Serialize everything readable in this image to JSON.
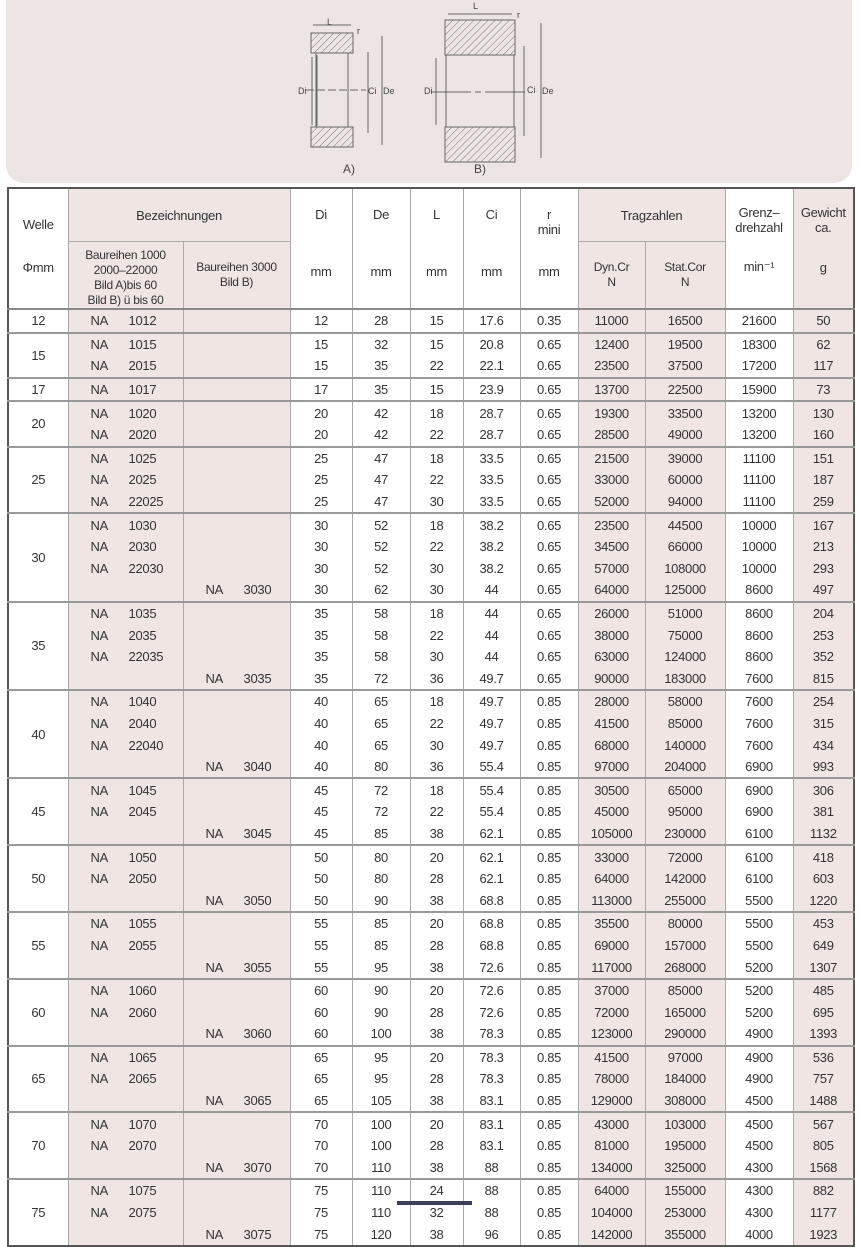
{
  "figure": {
    "labels": {
      "L": "L",
      "r": "r",
      "Di": "Di",
      "Ci": "Ci",
      "De": "De"
    },
    "caption_a": "A)",
    "caption_b": "B)"
  },
  "header": {
    "welle": "Welle",
    "welle_unit": "Φmm",
    "bezeichnungen": "Bezeichnungen",
    "series_a": [
      "Baureihen 1000",
      "2000–22000",
      "Bild A)bis 60",
      "Bild B) ü bis 60"
    ],
    "series_b": [
      "Baureihen 3000",
      "Bild B)"
    ],
    "di": "Di",
    "de": "De",
    "l": "L",
    "ci": "Ci",
    "r": "r",
    "r2": "mini",
    "mm": "mm",
    "tragzahlen": "Tragzahlen",
    "dyn": "Dyn.Cr",
    "stat": "Stat.Cor",
    "n_unit": "N",
    "grenz": "Grenz–",
    "grenz2": "drehzahl",
    "grenz_unit": "min⁻¹",
    "gewicht": "Gewicht",
    "gewicht2": "ca.",
    "gewicht_unit": "g"
  },
  "groups": [
    {
      "welle": "12",
      "rows": [
        [
          "NA 1012",
          "",
          "12",
          "28",
          "15",
          "17.6",
          "0.35",
          "11000",
          "16500",
          "21600",
          "50"
        ]
      ]
    },
    {
      "welle": "15",
      "rows": [
        [
          "NA 1015",
          "",
          "15",
          "32",
          "15",
          "20.8",
          "0.65",
          "12400",
          "19500",
          "18300",
          "62"
        ],
        [
          "NA 2015",
          "",
          "15",
          "35",
          "22",
          "22.1",
          "0.65",
          "23500",
          "37500",
          "17200",
          "117"
        ]
      ]
    },
    {
      "welle": "17",
      "rows": [
        [
          "NA 1017",
          "",
          "17",
          "35",
          "15",
          "23.9",
          "0.65",
          "13700",
          "22500",
          "15900",
          "73"
        ]
      ]
    },
    {
      "welle": "20",
      "rows": [
        [
          "NA 1020",
          "",
          "20",
          "42",
          "18",
          "28.7",
          "0.65",
          "19300",
          "33500",
          "13200",
          "130"
        ],
        [
          "NA 2020",
          "",
          "20",
          "42",
          "22",
          "28.7",
          "0.65",
          "28500",
          "49000",
          "13200",
          "160"
        ]
      ]
    },
    {
      "welle": "25",
      "rows": [
        [
          "NA 1025",
          "",
          "25",
          "47",
          "18",
          "33.5",
          "0.65",
          "21500",
          "39000",
          "11100",
          "151"
        ],
        [
          "NA 2025",
          "",
          "25",
          "47",
          "22",
          "33.5",
          "0.65",
          "33000",
          "60000",
          "11100",
          "187"
        ],
        [
          "NA 22025",
          "",
          "25",
          "47",
          "30",
          "33.5",
          "0.65",
          "52000",
          "94000",
          "11100",
          "259"
        ]
      ]
    },
    {
      "welle": "30",
      "rows": [
        [
          "NA 1030",
          "",
          "30",
          "52",
          "18",
          "38.2",
          "0.65",
          "23500",
          "44500",
          "10000",
          "167"
        ],
        [
          "NA 2030",
          "",
          "30",
          "52",
          "22",
          "38.2",
          "0.65",
          "34500",
          "66000",
          "10000",
          "213"
        ],
        [
          "NA 22030",
          "",
          "30",
          "52",
          "30",
          "38.2",
          "0.65",
          "57000",
          "108000",
          "10000",
          "293"
        ],
        [
          "",
          "NA 3030",
          "30",
          "62",
          "30",
          "44",
          "0.65",
          "64000",
          "125000",
          "8600",
          "497"
        ]
      ]
    },
    {
      "welle": "35",
      "rows": [
        [
          "NA 1035",
          "",
          "35",
          "58",
          "18",
          "44",
          "0.65",
          "26000",
          "51000",
          "8600",
          "204"
        ],
        [
          "NA 2035",
          "",
          "35",
          "58",
          "22",
          "44",
          "0.65",
          "38000",
          "75000",
          "8600",
          "253"
        ],
        [
          "NA 22035",
          "",
          "35",
          "58",
          "30",
          "44",
          "0.65",
          "63000",
          "124000",
          "8600",
          "352"
        ],
        [
          "",
          "NA 3035",
          "35",
          "72",
          "36",
          "49.7",
          "0.65",
          "90000",
          "183000",
          "7600",
          "815"
        ]
      ]
    },
    {
      "welle": "40",
      "rows": [
        [
          "NA 1040",
          "",
          "40",
          "65",
          "18",
          "49.7",
          "0.85",
          "28000",
          "58000",
          "7600",
          "254"
        ],
        [
          "NA 2040",
          "",
          "40",
          "65",
          "22",
          "49.7",
          "0.85",
          "41500",
          "85000",
          "7600",
          "315"
        ],
        [
          "NA 22040",
          "",
          "40",
          "65",
          "30",
          "49.7",
          "0.85",
          "68000",
          "140000",
          "7600",
          "434"
        ],
        [
          "",
          "NA 3040",
          "40",
          "80",
          "36",
          "55.4",
          "0.85",
          "97000",
          "204000",
          "6900",
          "993"
        ]
      ]
    },
    {
      "welle": "45",
      "rows": [
        [
          "NA 1045",
          "",
          "45",
          "72",
          "18",
          "55.4",
          "0.85",
          "30500",
          "65000",
          "6900",
          "306"
        ],
        [
          "NA 2045",
          "",
          "45",
          "72",
          "22",
          "55.4",
          "0.85",
          "45000",
          "95000",
          "6900",
          "381"
        ],
        [
          "",
          "NA 3045",
          "45",
          "85",
          "38",
          "62.1",
          "0.85",
          "105000",
          "230000",
          "6100",
          "1132"
        ]
      ]
    },
    {
      "welle": "50",
      "rows": [
        [
          "NA 1050",
          "",
          "50",
          "80",
          "20",
          "62.1",
          "0.85",
          "33000",
          "72000",
          "6100",
          "418"
        ],
        [
          "NA 2050",
          "",
          "50",
          "80",
          "28",
          "62.1",
          "0.85",
          "64000",
          "142000",
          "6100",
          "603"
        ],
        [
          "",
          "NA 3050",
          "50",
          "90",
          "38",
          "68.8",
          "0.85",
          "113000",
          "255000",
          "5500",
          "1220"
        ]
      ]
    },
    {
      "welle": "55",
      "rows": [
        [
          "NA 1055",
          "",
          "55",
          "85",
          "20",
          "68.8",
          "0.85",
          "35500",
          "80000",
          "5500",
          "453"
        ],
        [
          "NA 2055",
          "",
          "55",
          "85",
          "28",
          "68.8",
          "0.85",
          "69000",
          "157000",
          "5500",
          "649"
        ],
        [
          "",
          "NA 3055",
          "55",
          "95",
          "38",
          "72.6",
          "0.85",
          "117000",
          "268000",
          "5200",
          "1307"
        ]
      ]
    },
    {
      "welle": "60",
      "rows": [
        [
          "NA 1060",
          "",
          "60",
          "90",
          "20",
          "72.6",
          "0.85",
          "37000",
          "85000",
          "5200",
          "485"
        ],
        [
          "NA 2060",
          "",
          "60",
          "90",
          "28",
          "72.6",
          "0.85",
          "72000",
          "165000",
          "5200",
          "695"
        ],
        [
          "",
          "NA 3060",
          "60",
          "100",
          "38",
          "78.3",
          "0.85",
          "123000",
          "290000",
          "4900",
          "1393"
        ]
      ]
    },
    {
      "welle": "65",
      "rows": [
        [
          "NA 1065",
          "",
          "65",
          "95",
          "20",
          "78.3",
          "0.85",
          "41500",
          "97000",
          "4900",
          "536"
        ],
        [
          "NA 2065",
          "",
          "65",
          "95",
          "28",
          "78.3",
          "0.85",
          "78000",
          "184000",
          "4900",
          "757"
        ],
        [
          "",
          "NA 3065",
          "65",
          "105",
          "38",
          "83.1",
          "0.85",
          "129000",
          "308000",
          "4500",
          "1488"
        ]
      ]
    },
    {
      "welle": "70",
      "rows": [
        [
          "NA 1070",
          "",
          "70",
          "100",
          "20",
          "83.1",
          "0.85",
          "43000",
          "103000",
          "4500",
          "567"
        ],
        [
          "NA 2070",
          "",
          "70",
          "100",
          "28",
          "83.1",
          "0.85",
          "81000",
          "195000",
          "4500",
          "805"
        ],
        [
          "",
          "NA 3070",
          "70",
          "110",
          "38",
          "88",
          "0.85",
          "134000",
          "325000",
          "4300",
          "1568"
        ]
      ]
    },
    {
      "welle": "75",
      "rows": [
        [
          "NA 1075",
          "",
          "75",
          "110",
          "24",
          "88",
          "0.85",
          "64000",
          "155000",
          "4300",
          "882"
        ],
        [
          "NA 2075",
          "",
          "75",
          "110",
          "32",
          "88",
          "0.85",
          "104000",
          "253000",
          "4300",
          "1177"
        ],
        [
          "",
          "NA 3075",
          "75",
          "120",
          "38",
          "96",
          "0.85",
          "142000",
          "355000",
          "4000",
          "1923"
        ]
      ]
    }
  ]
}
